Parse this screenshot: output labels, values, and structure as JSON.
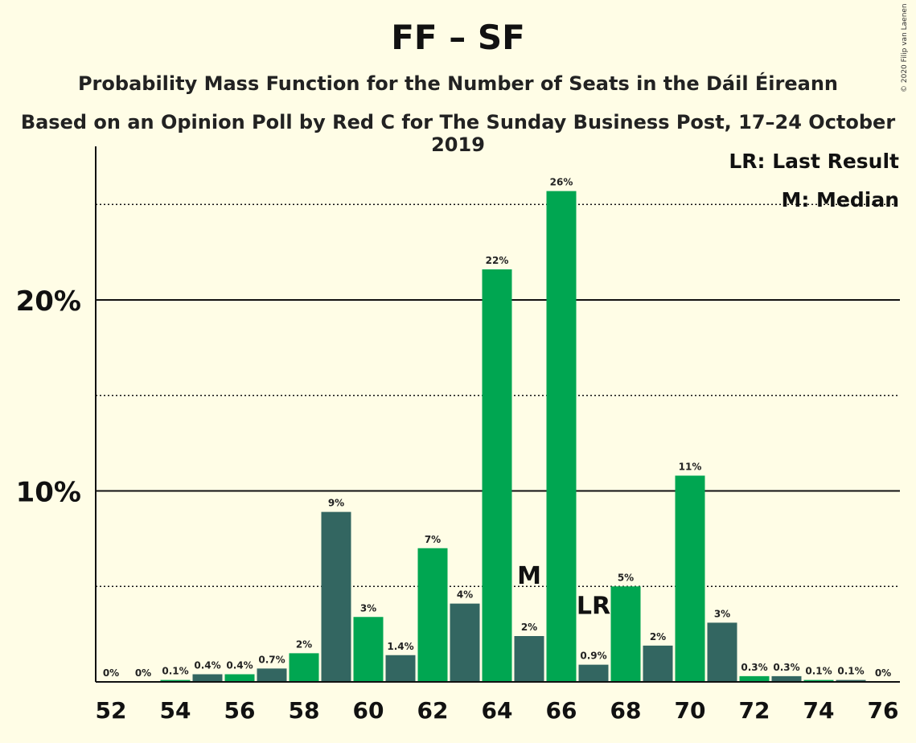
{
  "title": "FF – SF",
  "subtitle": "Probability Mass Function for the Number of Seats in the Dáil Éireann",
  "subtitle2": "Based on an Opinion Poll by Red C for The Sunday Business Post, 17–24 October 2019",
  "copyright": "© 2020 Filip van Laenen",
  "legend": {
    "lr": "LR: Last Result",
    "m": "M: Median"
  },
  "colors": {
    "background": "#fffde6",
    "green": "#00a651",
    "dark": "#336661"
  },
  "chart_data": {
    "type": "bar",
    "x": [
      52,
      53,
      54,
      55,
      56,
      57,
      58,
      59,
      60,
      61,
      62,
      63,
      64,
      65,
      66,
      67,
      68,
      69,
      70,
      71,
      72,
      73,
      74,
      75,
      76
    ],
    "values": [
      0,
      0,
      0.1,
      0.4,
      0.4,
      0.7,
      1.5,
      8.9,
      3.4,
      1.4,
      7.0,
      4.1,
      21.6,
      2.4,
      25.7,
      0.9,
      5.0,
      1.9,
      10.8,
      3.1,
      0.3,
      0.3,
      0.1,
      0.1,
      0
    ],
    "labels": [
      "0%",
      "0%",
      "0.1%",
      "0.4%",
      "0.4%",
      "0.7%",
      "2%",
      "9%",
      "3%",
      "1.4%",
      "7%",
      "4%",
      "22%",
      "2%",
      "26%",
      "0.9%",
      "5%",
      "2%",
      "11%",
      "3%",
      "0.3%",
      "0.3%",
      "0.1%",
      "0.1%",
      "0%"
    ],
    "bar_colors": [
      "green",
      "dark",
      "green",
      "dark",
      "green",
      "dark",
      "green",
      "dark",
      "green",
      "dark",
      "green",
      "dark",
      "green",
      "dark",
      "green",
      "dark",
      "green",
      "dark",
      "green",
      "dark",
      "green",
      "dark",
      "green",
      "dark",
      "green"
    ],
    "x_ticks": [
      "52",
      "54",
      "56",
      "58",
      "60",
      "62",
      "64",
      "66",
      "68",
      "70",
      "72",
      "74",
      "76"
    ],
    "x_tick_values": [
      52,
      54,
      56,
      58,
      60,
      62,
      64,
      66,
      68,
      70,
      72,
      74,
      76
    ],
    "y_ticks": [
      "10%",
      "20%"
    ],
    "y_tick_values": [
      10,
      20
    ],
    "ylim": [
      0,
      28
    ],
    "solid_gridlines": [
      10,
      20
    ],
    "dotted_gridlines": [
      5,
      15,
      25
    ],
    "median": 65,
    "median_label": "M",
    "last_result": 67,
    "last_result_label": "LR"
  }
}
